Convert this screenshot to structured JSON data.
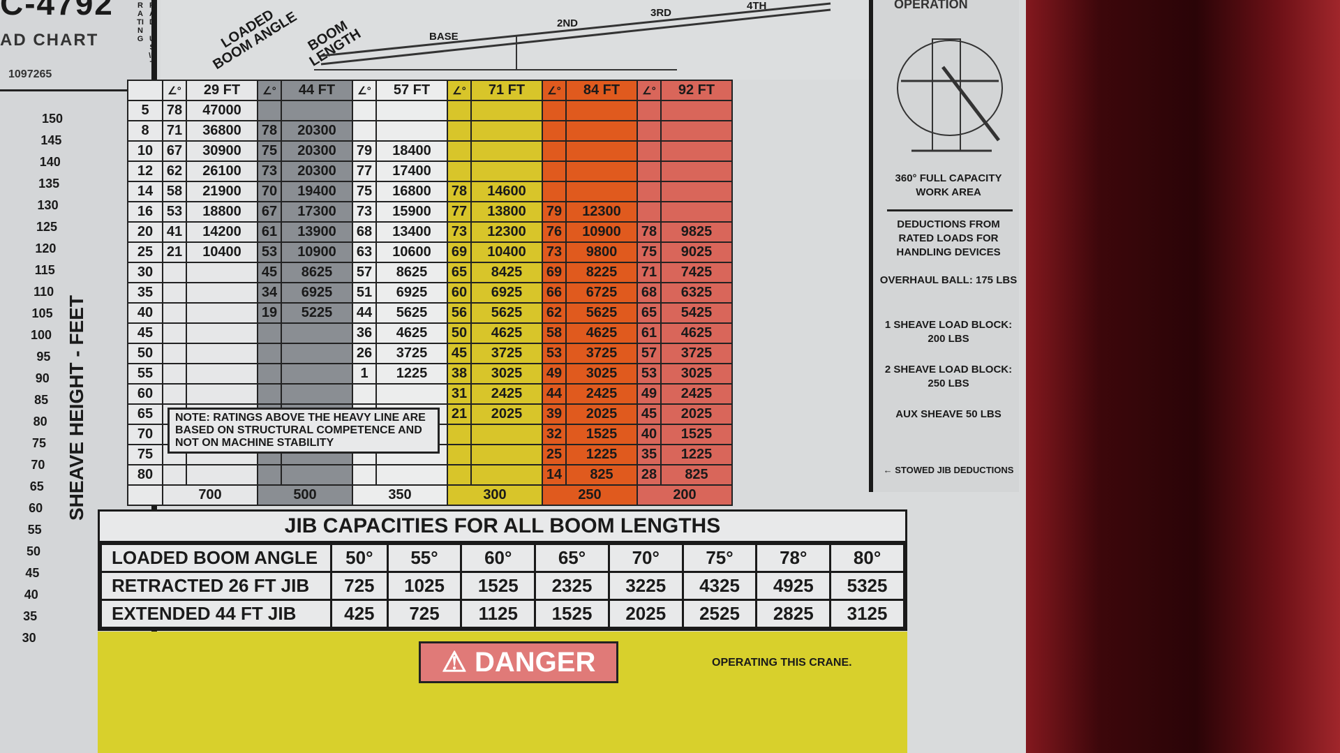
{
  "header": {
    "title": "C-4792",
    "subtitle": "AD CHART",
    "part_number": "1097265",
    "radius_label_left": "RATING",
    "radius_label_right": "RADIUS\\FT",
    "loaded_boom_angle": "LOADED BOOM ANGLE",
    "boom_length": "BOOM LENGTH",
    "boom_sections": [
      "BASE",
      "2ND",
      "3RD",
      "4TH"
    ]
  },
  "height_scale": {
    "label": "SHEAVE HEIGHT - FEET",
    "ticks": [
      150,
      145,
      140,
      135,
      130,
      125,
      120,
      115,
      110,
      105,
      100,
      95,
      90,
      85,
      80,
      75,
      70,
      65,
      60,
      55,
      50,
      45,
      40,
      35,
      30
    ]
  },
  "load_chart": {
    "boom_lengths": [
      "29 FT",
      "44 FT",
      "57 FT",
      "71 FT",
      "84 FT",
      "92 FT"
    ],
    "colors": [
      "#e6e7e8",
      "#8a8e93",
      "#eceded",
      "#d8c52a",
      "#e05a1e",
      "#d9665a"
    ],
    "rows": [
      {
        "radius": "5",
        "cells": [
          [
            "78",
            "47000"
          ],
          null,
          null,
          null,
          null,
          null
        ]
      },
      {
        "radius": "8",
        "cells": [
          [
            "71",
            "36800"
          ],
          [
            "78",
            "20300"
          ],
          null,
          null,
          null,
          null
        ]
      },
      {
        "radius": "10",
        "cells": [
          [
            "67",
            "30900"
          ],
          [
            "75",
            "20300"
          ],
          [
            "79",
            "18400"
          ],
          null,
          null,
          null
        ]
      },
      {
        "radius": "12",
        "cells": [
          [
            "62",
            "26100"
          ],
          [
            "73",
            "20300"
          ],
          [
            "77",
            "17400"
          ],
          null,
          null,
          null
        ]
      },
      {
        "radius": "14",
        "cells": [
          [
            "58",
            "21900"
          ],
          [
            "70",
            "19400"
          ],
          [
            "75",
            "16800"
          ],
          [
            "78",
            "14600"
          ],
          null,
          null
        ]
      },
      {
        "radius": "16",
        "cells": [
          [
            "53",
            "18800"
          ],
          [
            "67",
            "17300"
          ],
          [
            "73",
            "15900"
          ],
          [
            "77",
            "13800"
          ],
          [
            "79",
            "12300"
          ],
          null
        ]
      },
      {
        "radius": "20",
        "cells": [
          [
            "41",
            "14200"
          ],
          [
            "61",
            "13900"
          ],
          [
            "68",
            "13400"
          ],
          [
            "73",
            "12300"
          ],
          [
            "76",
            "10900"
          ],
          [
            "78",
            "9825"
          ]
        ]
      },
      {
        "radius": "25",
        "cells": [
          [
            "21",
            "10400"
          ],
          [
            "53",
            "10900"
          ],
          [
            "63",
            "10600"
          ],
          [
            "69",
            "10400"
          ],
          [
            "73",
            "9800"
          ],
          [
            "75",
            "9025"
          ]
        ]
      },
      {
        "radius": "30",
        "cells": [
          null,
          [
            "45",
            "8625"
          ],
          [
            "57",
            "8625"
          ],
          [
            "65",
            "8425"
          ],
          [
            "69",
            "8225"
          ],
          [
            "71",
            "7425"
          ]
        ]
      },
      {
        "radius": "35",
        "cells": [
          null,
          [
            "34",
            "6925"
          ],
          [
            "51",
            "6925"
          ],
          [
            "60",
            "6925"
          ],
          [
            "66",
            "6725"
          ],
          [
            "68",
            "6325"
          ]
        ]
      },
      {
        "radius": "40",
        "cells": [
          null,
          [
            "19",
            "5225"
          ],
          [
            "44",
            "5625"
          ],
          [
            "56",
            "5625"
          ],
          [
            "62",
            "5625"
          ],
          [
            "65",
            "5425"
          ]
        ]
      },
      {
        "radius": "45",
        "cells": [
          null,
          null,
          [
            "36",
            "4625"
          ],
          [
            "50",
            "4625"
          ],
          [
            "58",
            "4625"
          ],
          [
            "61",
            "4625"
          ]
        ]
      },
      {
        "radius": "50",
        "cells": [
          null,
          null,
          [
            "26",
            "3725"
          ],
          [
            "45",
            "3725"
          ],
          [
            "53",
            "3725"
          ],
          [
            "57",
            "3725"
          ]
        ]
      },
      {
        "radius": "55",
        "cells": [
          null,
          null,
          [
            "1",
            "1225"
          ],
          [
            "38",
            "3025"
          ],
          [
            "49",
            "3025"
          ],
          [
            "53",
            "3025"
          ]
        ]
      },
      {
        "radius": "60",
        "cells": [
          null,
          null,
          null,
          [
            "31",
            "2425"
          ],
          [
            "44",
            "2425"
          ],
          [
            "49",
            "2425"
          ]
        ]
      },
      {
        "radius": "65",
        "cells": [
          null,
          null,
          null,
          [
            "21",
            "2025"
          ],
          [
            "39",
            "2025"
          ],
          [
            "45",
            "2025"
          ]
        ]
      },
      {
        "radius": "70",
        "cells": [
          null,
          null,
          null,
          null,
          [
            "32",
            "1525"
          ],
          [
            "40",
            "1525"
          ]
        ]
      },
      {
        "radius": "75",
        "cells": [
          null,
          null,
          null,
          null,
          [
            "25",
            "1225"
          ],
          [
            "35",
            "1225"
          ]
        ]
      },
      {
        "radius": "80",
        "cells": [
          null,
          null,
          null,
          null,
          [
            "14",
            "825"
          ],
          [
            "28",
            "825"
          ]
        ]
      }
    ],
    "stowed_jib_deductions": [
      "700",
      "500",
      "350",
      "300",
      "250",
      "200"
    ],
    "note": "NOTE: RATINGS ABOVE THE HEAVY LINE ARE BASED ON STRUCTURAL COMPETENCE AND NOT ON MACHINE STABILITY"
  },
  "right_panel": {
    "operation": "OPERATION",
    "work_area": "360° FULL CAPACITY WORK AREA",
    "deductions_title": "DEDUCTIONS FROM RATED LOADS FOR HANDLING DEVICES",
    "items": [
      "OVERHAUL BALL: 175 LBS",
      "1 SHEAVE LOAD BLOCK: 200 LBS",
      "2 SHEAVE LOAD BLOCK: 250 LBS",
      "AUX SHEAVE 50 LBS"
    ],
    "stowed": "STOWED JIB DEDUCTIONS"
  },
  "jib": {
    "title": "JIB CAPACITIES FOR ALL BOOM LENGTHS",
    "rows": [
      {
        "label": "LOADED BOOM ANGLE",
        "values": [
          "50°",
          "55°",
          "60°",
          "65°",
          "70°",
          "75°",
          "78°",
          "80°"
        ]
      },
      {
        "label": "RETRACTED 26 FT JIB",
        "values": [
          "725",
          "1025",
          "1525",
          "2325",
          "3225",
          "4325",
          "4925",
          "5325"
        ]
      },
      {
        "label": "EXTENDED 44 FT JIB",
        "values": [
          "425",
          "725",
          "1125",
          "1525",
          "2025",
          "2525",
          "2825",
          "3125"
        ]
      }
    ]
  },
  "danger": {
    "label": "DANGER",
    "text": "OPERATING THIS CRANE."
  }
}
